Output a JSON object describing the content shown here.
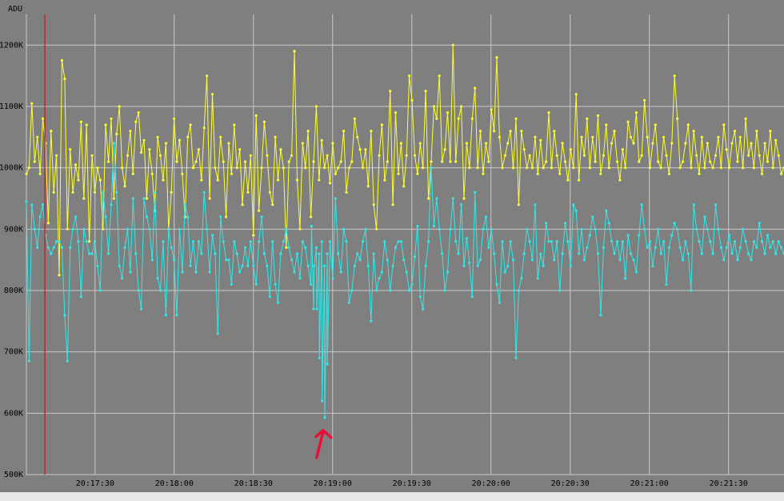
{
  "chart_data": {
    "type": "line",
    "ylabel": "ADU",
    "ylim": [
      500000,
      1250000
    ],
    "y_ticks": [
      {
        "value": 500000,
        "label": "500K"
      },
      {
        "value": 600000,
        "label": "600K"
      },
      {
        "value": 700000,
        "label": "700K"
      },
      {
        "value": 800000,
        "label": "800K"
      },
      {
        "value": 900000,
        "label": "900K"
      },
      {
        "value": 1000000,
        "label": "1000K"
      },
      {
        "value": 1100000,
        "label": "1100K"
      },
      {
        "value": 1200000,
        "label": "1200K"
      }
    ],
    "xlim": [
      "20:17:04",
      "20:21:51"
    ],
    "x_ticks": [
      "20:17:30",
      "20:18:00",
      "20:18:30",
      "20:19:00",
      "20:19:30",
      "20:20:00",
      "20:20:30",
      "20:21:00",
      "20:21:30"
    ],
    "grid": true,
    "marker_time": "20:17:11",
    "series": [
      {
        "color": "#ffff33",
        "values": [
          990000,
          1000000,
          1105000,
          1010000,
          1050000,
          990000,
          1080000,
          1040000,
          910000,
          1060000,
          960000,
          1020000,
          825000,
          1175000,
          1145000,
          900000,
          1030000,
          960000,
          1005000,
          980000,
          1075000,
          950000,
          1070000,
          880000,
          1020000,
          960000,
          1000000,
          980000,
          900000,
          1070000,
          1010000,
          1080000,
          950000,
          1055000,
          1100000,
          1000000,
          970000,
          1020000,
          1060000,
          990000,
          1075000,
          1090000,
          1025000,
          1045000,
          950000,
          1030000,
          990000,
          930000,
          1050000,
          1020000,
          980000,
          1040000,
          900000,
          960000,
          1080000,
          1010000,
          1045000,
          990000,
          920000,
          1050000,
          1070000,
          1000000,
          1010000,
          1030000,
          980000,
          1065000,
          1150000,
          950000,
          1120000,
          1000000,
          980000,
          1050000,
          1010000,
          920000,
          1040000,
          990000,
          1070000,
          1000000,
          1030000,
          940000,
          1010000,
          960000,
          1020000,
          890000,
          1085000,
          930000,
          1000000,
          1075000,
          1020000,
          960000,
          940000,
          1050000,
          980000,
          1030000,
          1000000,
          870000,
          1010000,
          1020000,
          1190000,
          980000,
          900000,
          1040000,
          1000000,
          1060000,
          920000,
          1010000,
          1100000,
          980000,
          1045000,
          1000000,
          1020000,
          975000,
          1040000,
          990000,
          1000000,
          1010000,
          1060000,
          960000,
          1000000,
          1010000,
          1080000,
          1050000,
          1030000,
          1000000,
          1030000,
          970000,
          1060000,
          940000,
          900000,
          1020000,
          1070000,
          980000,
          1010000,
          1125000,
          940000,
          1090000,
          990000,
          1040000,
          970000,
          1020000,
          1150000,
          1110000,
          1020000,
          990000,
          1040000,
          1000000,
          1125000,
          950000,
          1010000,
          1100000,
          1080000,
          1150000,
          1010000,
          1030000,
          1090000,
          1010000,
          1200000,
          1010000,
          1080000,
          1100000,
          950000,
          1040000,
          1000000,
          1080000,
          1130000,
          1000000,
          1060000,
          990000,
          1040000,
          1010000,
          1095000,
          1060000,
          1180000,
          1050000,
          1000000,
          1020000,
          1040000,
          1060000,
          1000000,
          1080000,
          940000,
          1060000,
          1030000,
          1000000,
          1020000,
          1000000,
          1050000,
          990000,
          1045000,
          1000000,
          1010000,
          1090000,
          1000000,
          1060000,
          1020000,
          990000,
          1040000,
          1010000,
          980000,
          1030000,
          1000000,
          1120000,
          980000,
          1050000,
          1020000,
          1080000,
          1000000,
          1050000,
          1010000,
          1085000,
          990000,
          1020000,
          1070000,
          1000000,
          1040000,
          1060000,
          1010000,
          980000,
          1030000,
          1000000,
          1075000,
          1050000,
          1040000,
          1090000,
          1010000,
          1020000,
          1110000,
          1050000,
          1000000,
          1040000,
          1070000,
          1010000,
          1000000,
          1050000,
          1020000,
          990000,
          1040000,
          1150000,
          1080000,
          1000000,
          1010000,
          1040000,
          1070000,
          1000000,
          1060000,
          1020000,
          990000,
          1050000,
          1000000,
          1040000,
          1010000,
          1000000,
          1020000,
          1050000,
          1000000,
          1070000,
          1030000,
          1000000,
          1040000,
          1060000,
          1010000,
          1050000,
          1000000,
          1080000,
          1020000,
          1040000,
          1000000,
          1060000,
          1020000,
          990000,
          1040000,
          1010000,
          1060000,
          1000000,
          1045000,
          1020000,
          990000,
          1000000
        ]
      },
      {
        "color": "#33e8e8",
        "values": [
          945000,
          685000,
          940000,
          900000,
          870000,
          920000,
          940000,
          890000,
          870000,
          860000,
          870000,
          880000,
          880000,
          870000,
          760000,
          685000,
          870000,
          900000,
          920000,
          880000,
          790000,
          900000,
          880000,
          860000,
          860000,
          880000,
          840000,
          800000,
          960000,
          920000,
          860000,
          940000,
          1040000,
          960000,
          840000,
          820000,
          870000,
          900000,
          830000,
          950000,
          860000,
          800000,
          770000,
          950000,
          920000,
          900000,
          850000,
          960000,
          820000,
          800000,
          880000,
          760000,
          900000,
          870000,
          850000,
          760000,
          900000,
          830000,
          940000,
          920000,
          840000,
          880000,
          830000,
          880000,
          860000,
          960000,
          900000,
          830000,
          890000,
          860000,
          730000,
          920000,
          880000,
          850000,
          850000,
          810000,
          880000,
          860000,
          830000,
          840000,
          870000,
          840000,
          880000,
          840000,
          810000,
          880000,
          920000,
          860000,
          840000,
          790000,
          880000,
          810000,
          780000,
          860000,
          880000,
          900000,
          870000,
          850000,
          830000,
          860000,
          820000,
          880000,
          870000,
          840000,
          810000,
          770000,
          870000,
          860000,
          880000,
          840000,
          860000,
          880000,
          820000,
          950000,
          860000,
          830000,
          900000,
          880000,
          780000,
          800000,
          840000,
          860000,
          850000,
          880000,
          900000,
          840000,
          750000,
          860000,
          800000,
          820000,
          830000,
          880000,
          850000,
          800000,
          840000,
          870000,
          880000,
          880000,
          850000,
          830000,
          800000,
          810000,
          855000,
          905000,
          790000,
          770000,
          840000,
          880000,
          1000000,
          905000,
          950000,
          900000,
          860000,
          800000,
          830000,
          900000,
          950000,
          880000,
          860000,
          940000,
          840000,
          885000,
          845000,
          790000,
          960000,
          840000,
          850000,
          900000,
          920000,
          870000,
          900000,
          860000,
          810000,
          780000,
          880000,
          830000,
          840000,
          880000,
          850000,
          690000,
          800000,
          820000,
          860000,
          900000,
          880000,
          850000,
          940000,
          820000,
          860000,
          840000,
          910000,
          880000,
          880000,
          850000,
          880000,
          800000,
          860000,
          910000,
          880000,
          840000,
          940000,
          930000,
          860000,
          900000,
          850000,
          870000,
          890000,
          920000,
          900000,
          860000,
          760000,
          870000,
          930000,
          910000,
          880000,
          860000,
          880000,
          850000,
          880000,
          820000,
          890000,
          860000,
          850000,
          830000,
          890000,
          940000,
          900000,
          870000,
          880000,
          840000,
          870000,
          900000,
          860000,
          880000,
          810000,
          870000,
          890000,
          910000,
          900000,
          870000,
          850000,
          880000,
          860000,
          800000,
          940000,
          900000,
          880000,
          860000,
          920000,
          900000,
          880000,
          860000,
          940000,
          900000,
          870000,
          850000,
          870000,
          890000,
          860000,
          880000,
          850000,
          870000,
          900000,
          880000,
          860000,
          850000,
          880000,
          870000,
          910000,
          880000,
          860000,
          890000,
          870000,
          880000,
          860000,
          880000,
          870000,
          860000
        ]
      }
    ],
    "cyan_dip": [
      {
        "time": "20:18:52",
        "value": 905000
      },
      {
        "time": "20:18:53",
        "value": 840000
      },
      {
        "time": "20:18:54",
        "value": 770000
      },
      {
        "time": "20:18:55",
        "value": 690000
      },
      {
        "time": "20:18:56",
        "value": 620000
      },
      {
        "time": "20:18:57",
        "value": 593000
      },
      {
        "time": "20:18:58",
        "value": 680000
      },
      {
        "time": "20:18:59",
        "value": 880000
      }
    ],
    "annotation": {
      "type": "arrow",
      "color": "#e8103a",
      "points_to": {
        "time": "20:18:57",
        "value": 593000
      }
    }
  }
}
